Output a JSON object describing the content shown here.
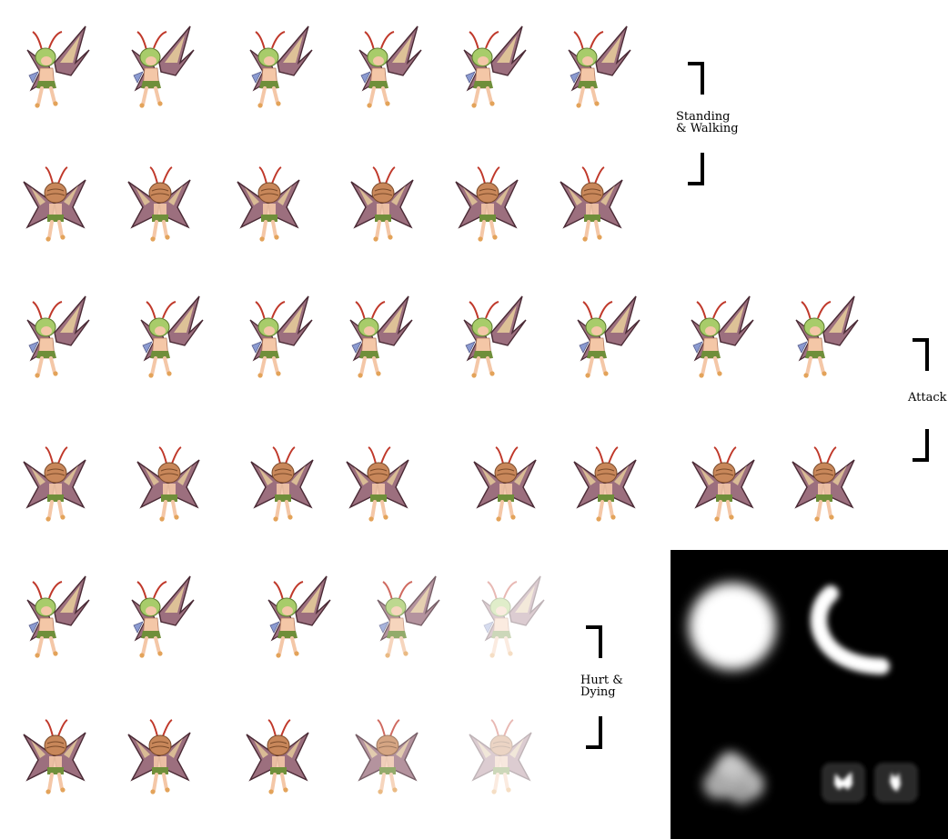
{
  "colors": {
    "background": "#ffffff",
    "wing_dark": "#4a2a35",
    "wing_mid": "#9c6f7e",
    "wing_light": "#f3dca0",
    "hair": "#a8cc6a",
    "skin": "#f4c7a7",
    "antenna": "#c0392b",
    "cap": "#c8875a",
    "flower": "#8a9ad0",
    "fx_panel": "#000000",
    "fx_glow": "#ffffff"
  },
  "sections": {
    "standing_walking": {
      "label_line1": "Standing",
      "label_line2": "& Walking",
      "rows": [
        {
          "frames": [
            "front",
            "front",
            "front",
            "front",
            "front",
            "front"
          ]
        },
        {
          "frames": [
            "back",
            "back",
            "back",
            "back",
            "back",
            "back"
          ]
        }
      ]
    },
    "attack": {
      "label": "Attack",
      "rows": [
        {
          "frames": [
            "front",
            "front",
            "front",
            "front",
            "front",
            "front",
            "front",
            "front"
          ]
        },
        {
          "frames": [
            "back",
            "back",
            "back",
            "back",
            "back",
            "back",
            "back",
            "back"
          ]
        }
      ]
    },
    "hurt_dying": {
      "label_line1": "Hurt &",
      "label_line2": "Dying",
      "rows": [
        {
          "frames": [
            "front",
            "front",
            "front",
            "front",
            "front"
          ],
          "opacity": [
            1,
            1,
            1,
            0.75,
            0.35
          ]
        },
        {
          "frames": [
            "back",
            "back",
            "back",
            "back",
            "back"
          ],
          "opacity": [
            1,
            1,
            1,
            0.75,
            0.35
          ]
        }
      ]
    }
  },
  "effects": {
    "items": [
      "glow-orb",
      "crescent-glow",
      "dust-cloud",
      "butterfly-glow",
      "butterfly-glow-small"
    ]
  }
}
